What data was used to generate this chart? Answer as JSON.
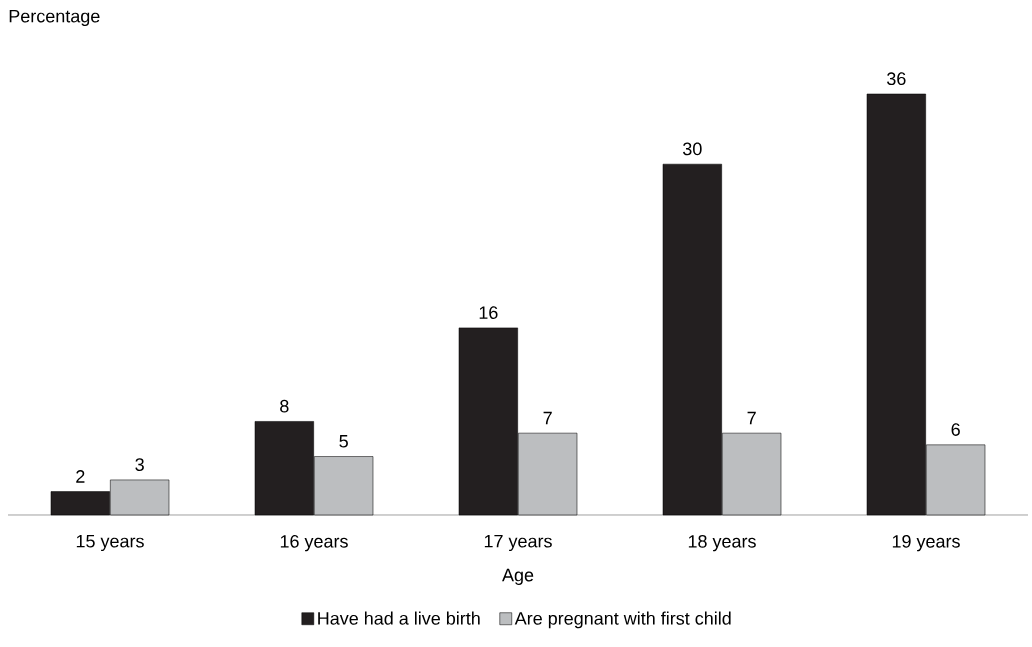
{
  "chart_data": {
    "type": "bar",
    "xlabel": "Age",
    "ylabel": "Percentage",
    "categories": [
      "15 years",
      "16 years",
      "17 years",
      "18 years",
      "19 years"
    ],
    "series": [
      {
        "name": "Have had a live birth",
        "color": "#231f20",
        "values": [
          2,
          8,
          16,
          30,
          36
        ]
      },
      {
        "name": "Are pregnant with first child",
        "color": "#bcbec0",
        "values": [
          3,
          5,
          7,
          7,
          6
        ]
      }
    ],
    "data_labels": true,
    "legend": "bottom",
    "grid": false
  }
}
